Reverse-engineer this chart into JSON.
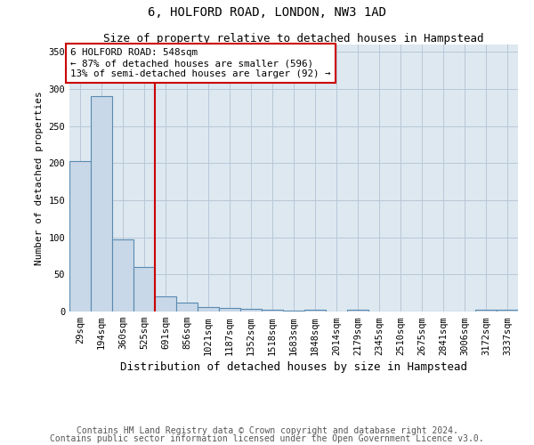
{
  "title": "6, HOLFORD ROAD, LONDON, NW3 1AD",
  "subtitle": "Size of property relative to detached houses in Hampstead",
  "xlabel": "Distribution of detached houses by size in Hampstead",
  "ylabel": "Number of detached properties",
  "categories": [
    "29sqm",
    "194sqm",
    "360sqm",
    "525sqm",
    "691sqm",
    "856sqm",
    "1021sqm",
    "1187sqm",
    "1352sqm",
    "1518sqm",
    "1683sqm",
    "1848sqm",
    "2014sqm",
    "2179sqm",
    "2345sqm",
    "2510sqm",
    "2675sqm",
    "2841sqm",
    "3006sqm",
    "3172sqm",
    "3337sqm"
  ],
  "values": [
    203,
    290,
    97,
    60,
    20,
    12,
    6,
    5,
    4,
    3,
    1,
    3,
    0,
    3,
    0,
    0,
    0,
    0,
    0,
    3,
    3
  ],
  "bar_color": "#c8d8e8",
  "bar_edgecolor": "#5a8ab0",
  "bar_linewidth": 0.8,
  "vline_x": 3.5,
  "vline_color": "#cc0000",
  "vline_linewidth": 1.5,
  "annotation_text": "6 HOLFORD ROAD: 548sqm\n← 87% of detached houses are smaller (596)\n13% of semi-detached houses are larger (92) →",
  "annotation_box_edgecolor": "#cc0000",
  "annotation_box_facecolor": "#ffffff",
  "ylim": [
    0,
    360
  ],
  "yticks": [
    0,
    50,
    100,
    150,
    200,
    250,
    300,
    350
  ],
  "footer_line1": "Contains HM Land Registry data © Crown copyright and database right 2024.",
  "footer_line2": "Contains public sector information licensed under the Open Government Licence v3.0.",
  "background_color": "#ffffff",
  "axes_facecolor": "#dde8f0",
  "grid_color": "#b8c8d8",
  "title_fontsize": 10,
  "subtitle_fontsize": 9,
  "xlabel_fontsize": 9,
  "ylabel_fontsize": 8,
  "tick_fontsize": 7.5,
  "annotation_fontsize": 7.8,
  "footer_fontsize": 7
}
